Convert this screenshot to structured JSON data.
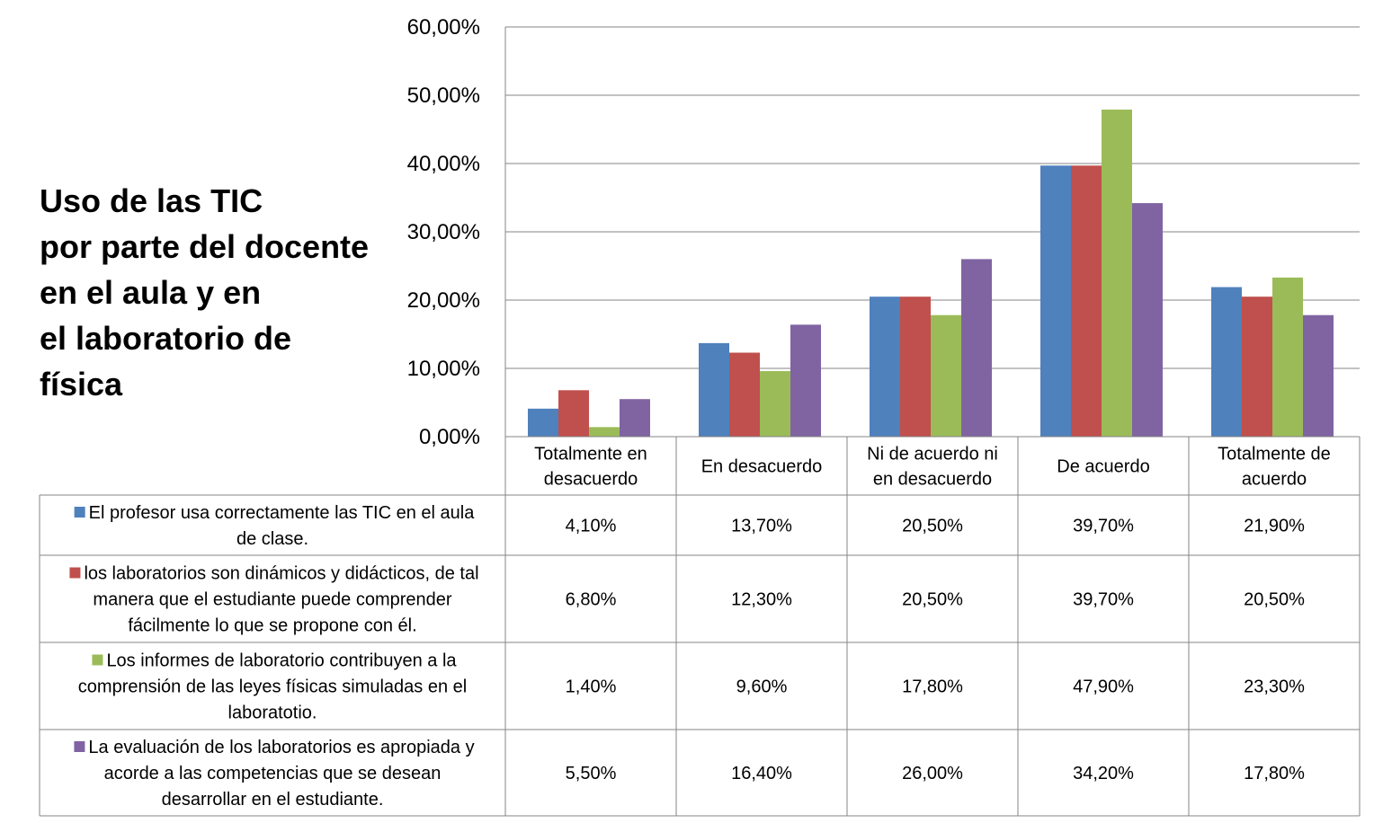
{
  "chart_data": {
    "type": "bar",
    "title": "Uso de las TIC por parte del docente en el aula y en el laboratorio de física",
    "categories": [
      "Totalmente en desacuerdo",
      "En desacuerdo",
      "Ni de acuerdo ni en desacuerdo",
      "De acuerdo",
      "Totalmente de acuerdo"
    ],
    "series": [
      {
        "name": "El profesor usa correctamente las TIC en el aula de clase.",
        "color": "#4F81BD",
        "values": [
          4.1,
          13.7,
          20.5,
          39.7,
          21.9
        ],
        "labels": [
          "4,10%",
          "13,70%",
          "20,50%",
          "39,70%",
          "21,90%"
        ]
      },
      {
        "name": "los laboratorios son dinámicos y didácticos, de tal manera que el estudiante puede comprender fácilmente lo que se propone con él.",
        "color": "#C0504D",
        "values": [
          6.8,
          12.3,
          20.5,
          39.7,
          20.5
        ],
        "labels": [
          "6,80%",
          "12,30%",
          "20,50%",
          "39,70%",
          "20,50%"
        ]
      },
      {
        "name": "Los informes de laboratorio contribuyen a la comprensión de las leyes físicas simuladas en el laboratotio.",
        "color": "#9BBB59",
        "values": [
          1.4,
          9.6,
          17.8,
          47.9,
          23.3
        ],
        "labels": [
          "1,40%",
          "9,60%",
          "17,80%",
          "47,90%",
          "23,30%"
        ]
      },
      {
        "name": "La evaluación de los laboratorios es apropiada y acorde a las competencias que se desean desarrollar en el estudiante.",
        "color": "#8064A2",
        "values": [
          5.5,
          16.4,
          26.0,
          34.2,
          17.8
        ],
        "labels": [
          "5,50%",
          "16,40%",
          "26,00%",
          "34,20%",
          "17,80%"
        ]
      }
    ],
    "y_ticks": [
      "0,00%",
      "10,00%",
      "20,00%",
      "30,00%",
      "40,00%",
      "50,00%",
      "60,00%"
    ],
    "ylim": [
      0,
      60
    ],
    "grid": true,
    "legend": "data-table"
  }
}
